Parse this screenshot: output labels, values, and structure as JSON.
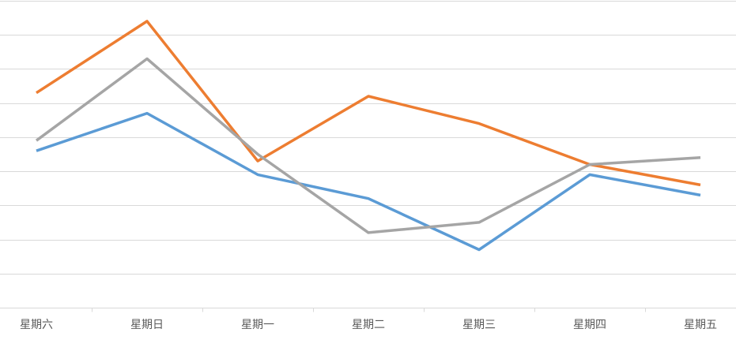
{
  "chart_data": {
    "type": "line",
    "title": "",
    "xlabel": "",
    "ylabel": "",
    "categories": [
      "星期六",
      "星期日",
      "星期一",
      "星期二",
      "星期三",
      "星期四",
      "星期五"
    ],
    "ylim": [
      0,
      9
    ],
    "grid": true,
    "legend": "none",
    "series": [
      {
        "color": "#5B9BD5",
        "values": [
          4.6,
          5.7,
          3.9,
          3.2,
          1.7,
          3.9,
          3.3
        ]
      },
      {
        "color": "#ED7D31",
        "values": [
          6.3,
          8.4,
          4.3,
          6.2,
          5.4,
          4.2,
          3.6
        ]
      },
      {
        "color": "#A5A5A5",
        "values": [
          4.9,
          7.3,
          4.5,
          2.2,
          2.5,
          4.2,
          4.4
        ]
      }
    ]
  }
}
